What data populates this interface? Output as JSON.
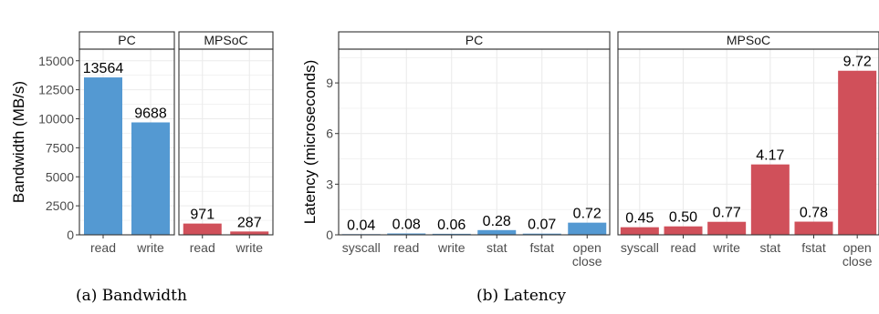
{
  "colors": {
    "pc": "#5499d2",
    "mpsoc": "#d0505a",
    "grid": "#ebebeb",
    "axis_text": "#4d4d4d"
  },
  "chart_data": [
    {
      "type": "bar",
      "ylabel": "Bandwidth (MB/s)",
      "ylim": [
        0,
        16000
      ],
      "yticks": [
        0,
        2500,
        5000,
        7500,
        10000,
        12500,
        15000
      ],
      "caption": "(a) Bandwidth",
      "panels": [
        {
          "title": "PC",
          "color_key": "pc",
          "categories": [
            "read",
            "write"
          ],
          "values": [
            13564,
            9688
          ],
          "labels": [
            "13564",
            "9688"
          ]
        },
        {
          "title": "MPSoC",
          "color_key": "mpsoc",
          "categories": [
            "read",
            "write"
          ],
          "values": [
            971,
            287
          ],
          "labels": [
            "971",
            "287"
          ]
        }
      ]
    },
    {
      "type": "bar",
      "ylabel": "Latency (microseconds)",
      "ylim": [
        0,
        11
      ],
      "yticks": [
        0,
        3,
        6,
        9
      ],
      "caption": "(b) Latency",
      "panels": [
        {
          "title": "PC",
          "color_key": "pc",
          "categories": [
            "syscall",
            "read",
            "write",
            "stat",
            "fstat",
            "open\nclose"
          ],
          "values": [
            0.04,
            0.08,
            0.06,
            0.28,
            0.07,
            0.72
          ],
          "labels": [
            "0.04",
            "0.08",
            "0.06",
            "0.28",
            "0.07",
            "0.72"
          ]
        },
        {
          "title": "MPSoC",
          "color_key": "mpsoc",
          "categories": [
            "syscall",
            "read",
            "write",
            "stat",
            "fstat",
            "open\nclose"
          ],
          "values": [
            0.45,
            0.5,
            0.77,
            4.17,
            0.78,
            9.72
          ],
          "labels": [
            "0.45",
            "0.50",
            "0.77",
            "4.17",
            "0.78",
            "9.72"
          ]
        }
      ]
    }
  ]
}
